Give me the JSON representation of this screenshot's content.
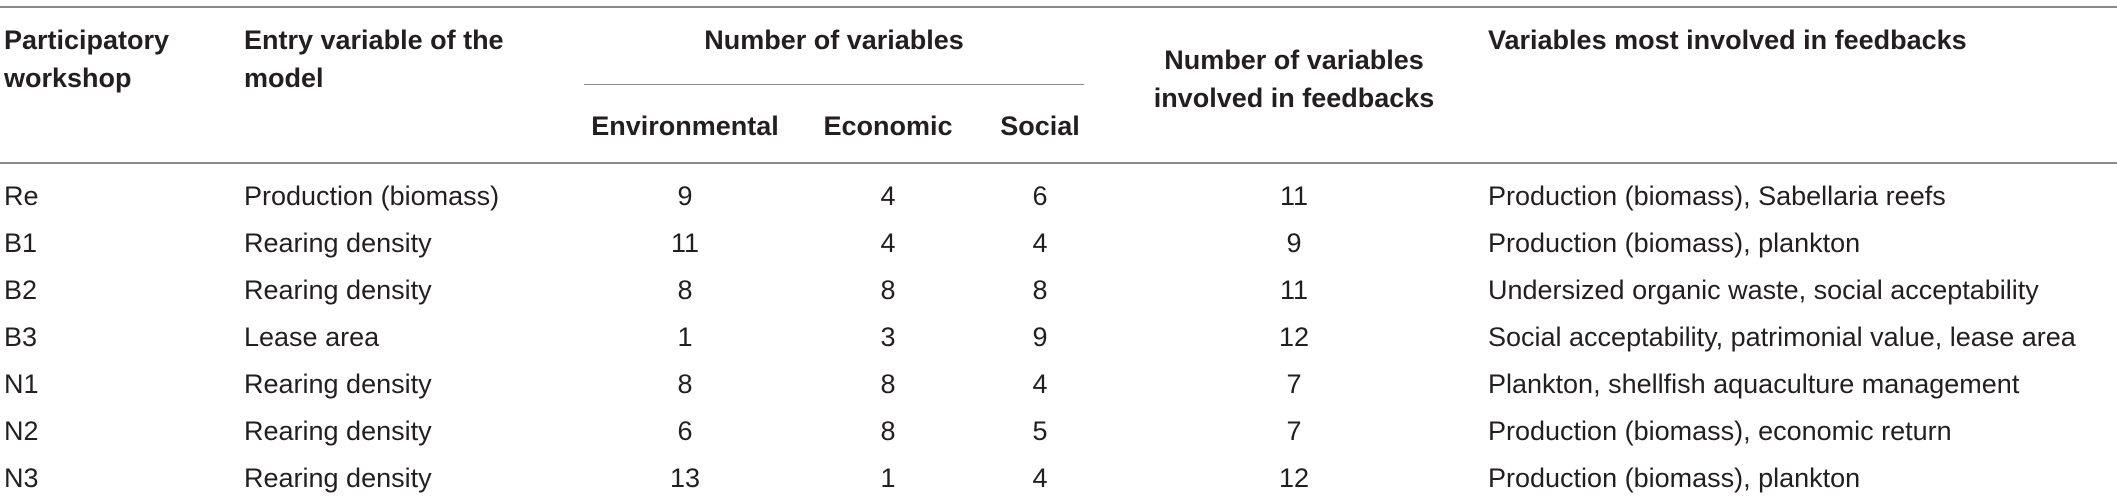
{
  "headers": {
    "workshop": [
      "Participatory",
      "workshop"
    ],
    "entry": [
      "Entry variable of the",
      "model"
    ],
    "number_of_variables": "Number of variables",
    "environmental": "Environmental",
    "economic": "Economic",
    "social": "Social",
    "feedback_count": [
      "Number of variables",
      "involved in feedbacks"
    ],
    "most_involved": "Variables most involved in feedbacks"
  },
  "rows": [
    {
      "workshop": "Re",
      "entry": "Production (biomass)",
      "environmental": "9",
      "economic": "4",
      "social": "6",
      "feedback_count": "11",
      "most_involved": "Production (biomass), Sabellaria reefs"
    },
    {
      "workshop": "B1",
      "entry": "Rearing density",
      "environmental": "11",
      "economic": "4",
      "social": "4",
      "feedback_count": "9",
      "most_involved": "Production (biomass), plankton"
    },
    {
      "workshop": "B2",
      "entry": "Rearing density",
      "environmental": "8",
      "economic": "8",
      "social": "8",
      "feedback_count": "11",
      "most_involved": "Undersized organic waste, social acceptability"
    },
    {
      "workshop": "B3",
      "entry": "Lease area",
      "environmental": "1",
      "economic": "3",
      "social": "9",
      "feedback_count": "12",
      "most_involved": "Social acceptability, patrimonial value, lease area"
    },
    {
      "workshop": "N1",
      "entry": "Rearing density",
      "environmental": "8",
      "economic": "8",
      "social": "4",
      "feedback_count": "7",
      "most_involved": "Plankton, shellfish aquaculture management"
    },
    {
      "workshop": "N2",
      "entry": "Rearing density",
      "environmental": "6",
      "economic": "8",
      "social": "5",
      "feedback_count": "7",
      "most_involved": "Production (biomass), economic return"
    },
    {
      "workshop": "N3",
      "entry": "Rearing density",
      "environmental": "13",
      "economic": "1",
      "social": "4",
      "feedback_count": "12",
      "most_involved": "Production (biomass), plankton"
    }
  ]
}
